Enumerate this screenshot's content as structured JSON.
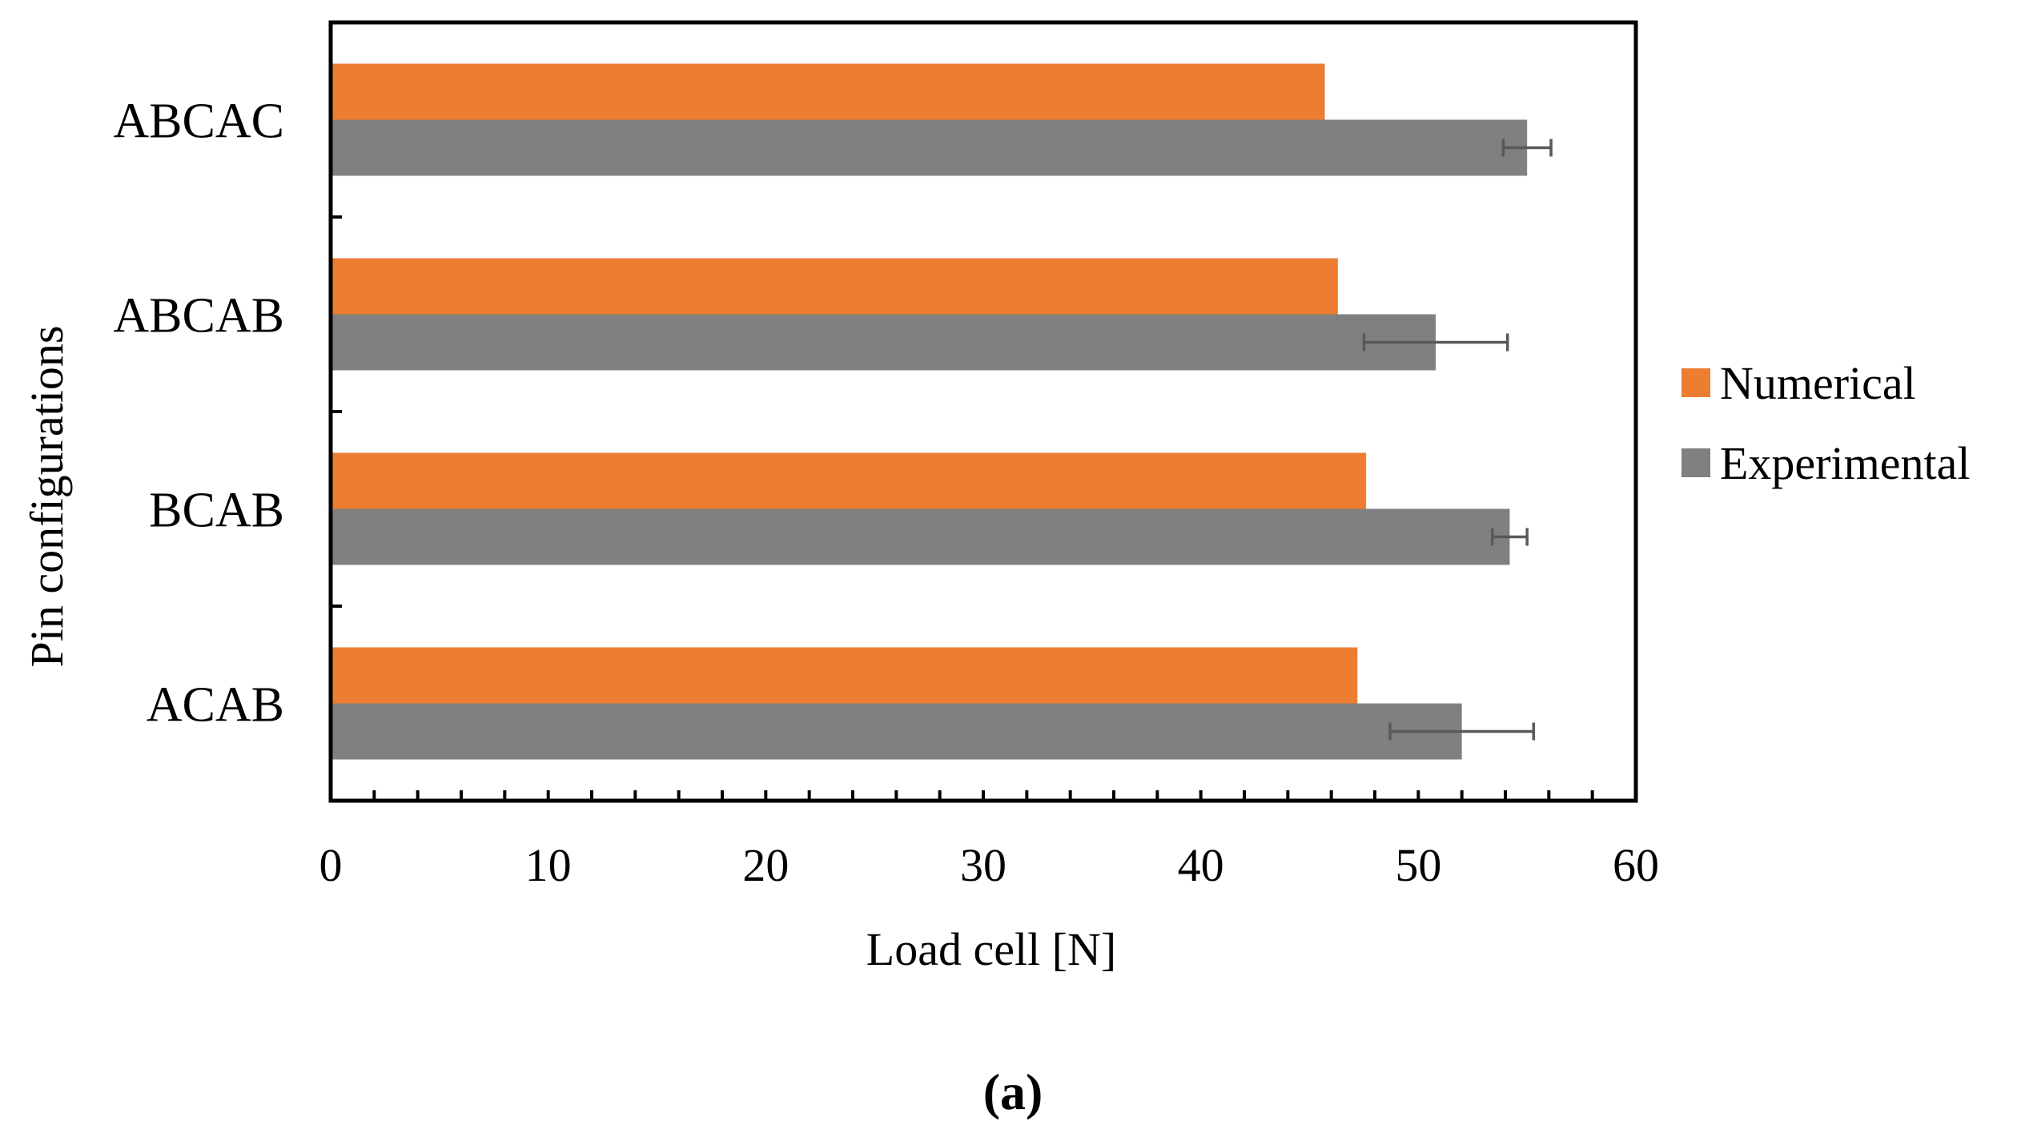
{
  "chart_data": {
    "type": "bar",
    "orientation": "horizontal",
    "title": "",
    "caption": "(a)",
    "xlabel": "Load cell [N]",
    "ylabel": "Pin configurations",
    "xlim": [
      0,
      60
    ],
    "x_ticks": [
      0,
      10,
      20,
      30,
      40,
      50,
      60
    ],
    "minor_tick_step": 2,
    "grid": false,
    "legend_position": "right",
    "categories": [
      "ABCAC",
      "ABCAB",
      "BCAB",
      "ACAB"
    ],
    "series": [
      {
        "name": "Numerical",
        "color": "#ED7D31",
        "values": [
          45.7,
          46.3,
          47.6,
          47.2
        ]
      },
      {
        "name": "Experimental",
        "color": "#808080",
        "values": [
          55.0,
          50.8,
          54.2,
          52.0
        ],
        "error": [
          1.1,
          3.3,
          0.8,
          3.3
        ]
      }
    ],
    "error_bar_color": "#595959"
  }
}
